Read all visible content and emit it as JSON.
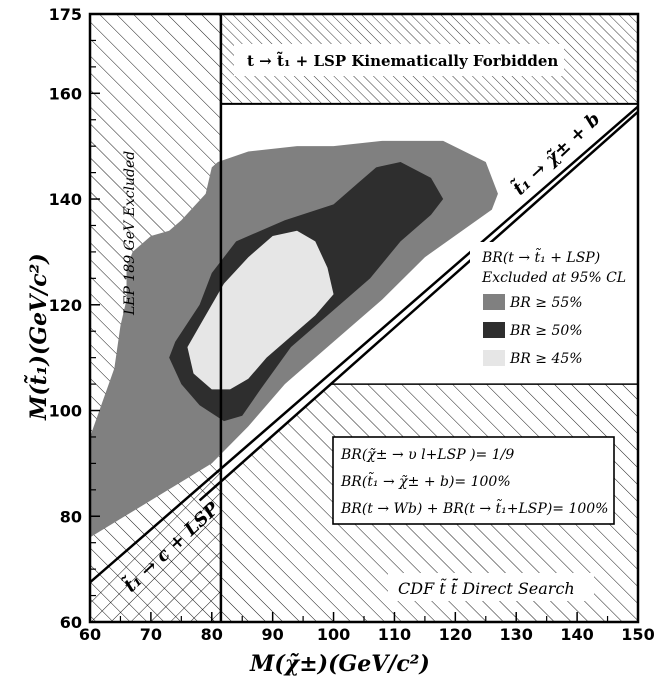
{
  "chart_data": {
    "type": "area",
    "xlabel": "M(χ̃±)(GeV/c²)",
    "ylabel": "M(t̃₁)(GeV/c²)",
    "xlim": [
      60,
      150
    ],
    "ylim": [
      60,
      175
    ],
    "xticks": [
      "60",
      "70",
      "80",
      "90",
      "100",
      "110",
      "120",
      "130",
      "140",
      "150"
    ],
    "yticks": [
      "60",
      "80",
      "100",
      "120",
      "140",
      "160",
      "175"
    ],
    "annotations": {
      "forbidden": "t → t̃₁ + LSP  Kinematically Forbidden",
      "lep": "LEP 189 GeV Excluded",
      "line_b": "t̃₁ → χ̃± + b",
      "line_c": "t̃₁ → c + LSP",
      "cdf": "CDF t̃ t̃̄ Direct Search"
    },
    "legend": {
      "title1": "BR(t → t̃₁ + LSP)",
      "title2": "Excluded at 95% CL",
      "entries": [
        {
          "label": "BR ≥ 55%",
          "color": "#808080"
        },
        {
          "label": "BR ≥ 50%",
          "color": "#2e2e2e"
        },
        {
          "label": "BR ≥ 45%",
          "color": "#e6e6e6"
        }
      ]
    },
    "assumptions": [
      "BR(χ̃± → υ l+LSP )= 1/9",
      "BR(t̃₁ → χ̃± + b)= 100%",
      "BR(t → Wb) + BR(t → t̃₁+LSP)= 100%"
    ],
    "lep_limit_x": 81.5,
    "forbidden_y": 158,
    "cdf_boundary_y": 105,
    "line_b": {
      "x": [
        78,
        150
      ],
      "y": [
        83,
        156.5
      ]
    },
    "line_c": {
      "x": [
        60,
        150
      ],
      "y": [
        67.5,
        157.5
      ]
    },
    "regions": [
      {
        "name": "BR ≥ 55%",
        "color": "#808080",
        "points": [
          [
            60,
            76
          ],
          [
            60,
            95
          ],
          [
            64,
            108
          ],
          [
            65,
            116
          ],
          [
            66,
            121
          ],
          [
            66,
            127
          ],
          [
            67,
            130
          ],
          [
            70,
            133
          ],
          [
            73,
            134
          ],
          [
            75,
            136
          ],
          [
            79,
            141
          ],
          [
            80,
            146
          ],
          [
            81,
            147
          ],
          [
            86,
            149
          ],
          [
            94,
            150
          ],
          [
            100,
            150
          ],
          [
            108,
            151
          ],
          [
            118,
            151
          ],
          [
            125,
            147
          ],
          [
            127,
            141
          ],
          [
            126,
            138
          ],
          [
            115,
            129
          ],
          [
            108,
            121
          ],
          [
            100,
            113
          ],
          [
            92,
            105
          ],
          [
            86,
            97
          ],
          [
            80,
            90
          ],
          [
            70,
            83
          ],
          [
            60,
            76
          ]
        ]
      },
      {
        "name": "BR ≥ 50%",
        "color": "#2e2e2e",
        "points": [
          [
            73,
            110
          ],
          [
            74,
            113
          ],
          [
            78,
            120
          ],
          [
            80,
            126
          ],
          [
            84,
            132
          ],
          [
            92,
            136
          ],
          [
            100,
            139
          ],
          [
            104,
            143
          ],
          [
            107,
            146
          ],
          [
            111,
            147
          ],
          [
            116,
            144
          ],
          [
            118,
            140
          ],
          [
            116,
            137
          ],
          [
            111,
            132
          ],
          [
            106,
            125
          ],
          [
            100,
            119
          ],
          [
            93,
            112
          ],
          [
            88,
            104
          ],
          [
            85,
            99
          ],
          [
            82,
            98
          ],
          [
            78,
            101
          ],
          [
            75,
            105
          ],
          [
            73,
            110
          ]
        ]
      },
      {
        "name": "BR ≥ 45%",
        "color": "#e6e6e6",
        "points": [
          [
            76,
            112
          ],
          [
            78,
            116
          ],
          [
            82,
            124
          ],
          [
            86,
            129
          ],
          [
            90,
            133
          ],
          [
            94,
            134
          ],
          [
            97,
            132
          ],
          [
            99,
            127
          ],
          [
            100,
            122
          ],
          [
            97,
            118
          ],
          [
            93,
            114
          ],
          [
            89,
            110
          ],
          [
            86,
            106
          ],
          [
            83,
            104
          ],
          [
            80,
            104
          ],
          [
            77,
            107
          ],
          [
            76,
            112
          ]
        ]
      }
    ]
  }
}
